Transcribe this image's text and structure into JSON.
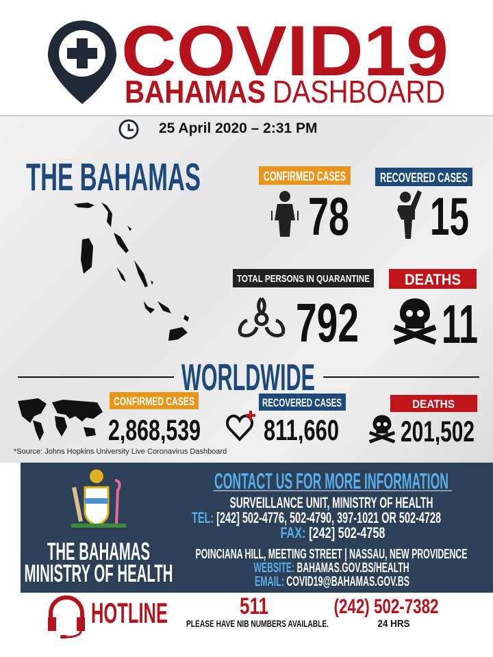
{
  "header": {
    "title": "COVID19",
    "subtitle_bold": "BAHAMAS",
    "subtitle_light": "DASHBOARD",
    "date": "25 April 2020 – 2:31 PM"
  },
  "bahamas": {
    "title": "THE BAHAMAS",
    "confirmed": {
      "label": "CONFIRMED CASES",
      "value": "78"
    },
    "recovered": {
      "label": "RECOVERED CASES",
      "value": "15"
    },
    "quarantine": {
      "label": "TOTAL PERSONS IN QUARANTINE",
      "value": "792"
    },
    "deaths": {
      "label": "DEATHS",
      "value": "11"
    }
  },
  "worldwide": {
    "title": "WORLDWIDE",
    "confirmed": {
      "label": "CONFIRMED CASES",
      "value": "2,868,539"
    },
    "recovered": {
      "label": "RECOVERED CASES",
      "value": "811,660"
    },
    "deaths": {
      "label": "DEATHS",
      "value": "201,502"
    },
    "source": "*Source: Johns Hopkins University Live Coronavirus Dashboard"
  },
  "contact": {
    "org_line1": "THE BAHAMAS",
    "org_line2": "MINISTRY OF HEALTH",
    "title": "CONTACT US FOR MORE INFORMATION",
    "unit": "SURVEILLANCE UNIT, MINISTRY OF HEALTH",
    "tel_label": "TEL:",
    "tel": "[242] 502-4776, 502-4790, 397-1021 OR 502-4728",
    "fax_label": "FAX:",
    "fax": "[242] 502-4758",
    "address": "POINCIANA HILL, MEETING STREET  |  NASSAU, NEW PROVIDENCE",
    "website_label": "WEBSITE:",
    "website": "BAHAMAS.GOV.BS/HEALTH",
    "email_label": "EMAIL:",
    "email": "COVID19@BAHAMAS.GOV.BS"
  },
  "hotline": {
    "label": "HOTLINE",
    "number1": "511",
    "note1": "PLEASE HAVE NIB NUMBERS AVAILABLE.",
    "number2": "(242) 502-7382",
    "note2": "24 HRS"
  },
  "colors": {
    "red": "#b5121b",
    "navy": "#1d4a7a",
    "orange": "#e8951a",
    "band": "#2c4157",
    "link_blue": "#5aaee8"
  }
}
